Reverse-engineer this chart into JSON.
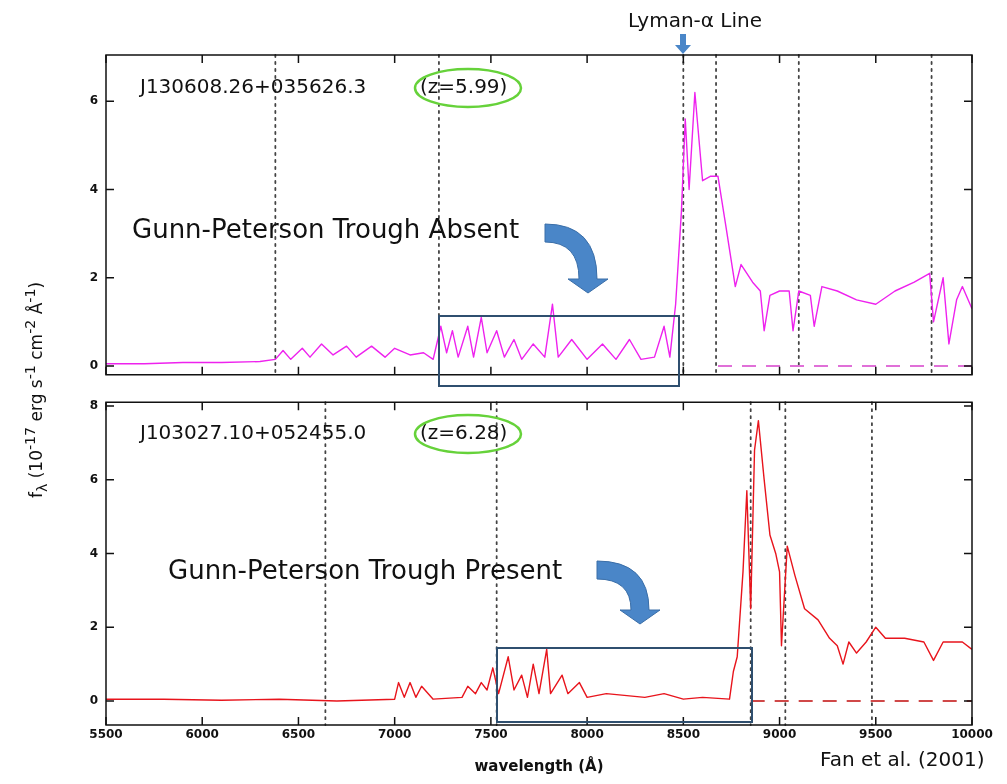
{
  "chart_data": [
    {
      "type": "line",
      "ylabel": "f$_{λ}$ (10$^{-17}$ erg s$^{-1}$ cm$^{-2}$ Å$^{-1}$)",
      "xlim": [
        5500,
        10000
      ],
      "xticks": [
        5500,
        6000,
        6500,
        7000,
        7500,
        8000,
        8500,
        9000,
        9500,
        10000
      ],
      "ylim": [
        -0.2,
        7.05
      ],
      "yticks": [
        0,
        2,
        4,
        6
      ],
      "tick_labels": "y",
      "grid": false,
      "legend": false,
      "marker": "none",
      "annotations": [
        "J130608.26+035626.3",
        "(z=5.99)",
        "Gunn-Peterson Trough Absent",
        "Lyman-α Line"
      ],
      "ref_lines": [
        {
          "axis": "x",
          "value": 6380,
          "color": "#444444",
          "line_style": "dotted"
        },
        {
          "axis": "x",
          "value": 7230,
          "color": "#444444",
          "line_style": "dotted"
        },
        {
          "axis": "x",
          "value": 8500,
          "color": "#444444",
          "line_style": "dotted"
        },
        {
          "axis": "x",
          "value": 8670,
          "color": "#444444",
          "line_style": "dotted"
        },
        {
          "axis": "x",
          "value": 9100,
          "color": "#444444",
          "line_style": "dotted"
        },
        {
          "axis": "x",
          "value": 9790,
          "color": "#444444",
          "line_style": "dotted"
        }
      ],
      "series": [
        {
          "color": "#ee22ee",
          "line_style": "solid",
          "x": [
            5500,
            5700,
            5900,
            6100,
            6300,
            6380,
            6420,
            6460,
            6520,
            6560,
            6620,
            6680,
            6750,
            6800,
            6880,
            6950,
            7000,
            7080,
            7150,
            7200,
            7240,
            7270,
            7300,
            7330,
            7380,
            7410,
            7450,
            7480,
            7530,
            7570,
            7620,
            7660,
            7720,
            7780,
            7820,
            7850,
            7920,
            8000,
            8080,
            8150,
            8220,
            8280,
            8350,
            8400,
            8430,
            8460,
            8490,
            8510,
            8530,
            8560,
            8600,
            8640,
            8680,
            8720,
            8770,
            8800,
            8860,
            8900,
            8920,
            8950,
            9000,
            9050,
            9070,
            9100,
            9160,
            9180,
            9220,
            9300,
            9400,
            9500,
            9600,
            9700,
            9780,
            9800,
            9850,
            9880,
            9920,
            9950,
            10000
          ],
          "values": [
            0.05,
            0.05,
            0.08,
            0.08,
            0.1,
            0.15,
            0.35,
            0.15,
            0.4,
            0.2,
            0.5,
            0.25,
            0.45,
            0.2,
            0.45,
            0.2,
            0.4,
            0.25,
            0.3,
            0.15,
            0.9,
            0.3,
            0.8,
            0.2,
            0.9,
            0.2,
            1.1,
            0.3,
            0.8,
            0.2,
            0.6,
            0.15,
            0.5,
            0.2,
            1.4,
            0.2,
            0.6,
            0.15,
            0.5,
            0.15,
            0.6,
            0.15,
            0.2,
            0.9,
            0.2,
            1.4,
            3.5,
            5.6,
            4.0,
            6.2,
            4.2,
            4.3,
            4.3,
            3.2,
            1.8,
            2.3,
            1.9,
            1.7,
            0.8,
            1.6,
            1.7,
            1.7,
            0.8,
            1.7,
            1.6,
            0.9,
            1.8,
            1.7,
            1.5,
            1.4,
            1.7,
            1.9,
            2.1,
            1.0,
            2.0,
            0.5,
            1.5,
            1.8,
            1.3
          ]
        },
        {
          "color": "#e070d8",
          "line_style": "dashed",
          "x": [
            8680,
            10000
          ],
          "values": [
            0,
            0
          ]
        }
      ]
    },
    {
      "type": "line",
      "xlabel": "wavelength (Å)",
      "xlim": [
        5500,
        10000
      ],
      "xticks": [
        5500,
        6000,
        6500,
        7000,
        7500,
        8000,
        8500,
        9000,
        9500,
        10000
      ],
      "ylim": [
        -0.65,
        8.1
      ],
      "yticks": [
        0,
        2,
        4,
        6,
        8
      ],
      "grid": false,
      "legend": false,
      "marker": "none",
      "annotations": [
        "J103027.10+052455.0",
        "(z=6.28)",
        "Gunn-Peterson Trough Present",
        "Fan et al. (2001)"
      ],
      "ref_lines": [
        {
          "axis": "x",
          "value": 6640,
          "color": "#444444",
          "line_style": "dotted"
        },
        {
          "axis": "x",
          "value": 7530,
          "color": "#444444",
          "line_style": "dotted"
        },
        {
          "axis": "x",
          "value": 8850,
          "color": "#444444",
          "line_style": "dotted"
        },
        {
          "axis": "x",
          "value": 9030,
          "color": "#444444",
          "line_style": "dotted"
        },
        {
          "axis": "x",
          "value": 9480,
          "color": "#444444",
          "line_style": "dotted"
        }
      ],
      "series": [
        {
          "color": "#e8141c",
          "line_style": "solid",
          "x": [
            5500,
            5800,
            6100,
            6400,
            6700,
            7000,
            7020,
            7050,
            7080,
            7110,
            7140,
            7200,
            7350,
            7380,
            7420,
            7450,
            7480,
            7510,
            7540,
            7590,
            7620,
            7660,
            7690,
            7720,
            7750,
            7790,
            7810,
            7870,
            7900,
            7960,
            8000,
            8100,
            8300,
            8400,
            8500,
            8600,
            8740,
            8760,
            8780,
            8810,
            8830,
            8850,
            8870,
            8890,
            8920,
            8950,
            8980,
            9000,
            9010,
            9040,
            9080,
            9130,
            9200,
            9260,
            9300,
            9330,
            9360,
            9400,
            9450,
            9500,
            9550,
            9650,
            9750,
            9800,
            9850,
            9950,
            10000
          ],
          "values": [
            0.05,
            0.05,
            0.02,
            0.05,
            0.0,
            0.05,
            0.5,
            0.1,
            0.5,
            0.1,
            0.4,
            0.05,
            0.1,
            0.4,
            0.2,
            0.5,
            0.3,
            0.9,
            0.2,
            1.2,
            0.3,
            0.7,
            0.1,
            1.0,
            0.2,
            1.4,
            0.2,
            0.7,
            0.2,
            0.5,
            0.1,
            0.2,
            0.1,
            0.2,
            0.05,
            0.1,
            0.05,
            0.8,
            1.2,
            3.5,
            5.7,
            2.5,
            6.8,
            7.6,
            6.0,
            4.5,
            4.0,
            3.5,
            1.5,
            4.2,
            3.4,
            2.5,
            2.2,
            1.7,
            1.5,
            1.0,
            1.6,
            1.3,
            1.6,
            2.0,
            1.7,
            1.7,
            1.6,
            1.1,
            1.6,
            1.6,
            1.4
          ]
        },
        {
          "color": "#d04848",
          "line_style": "dashed",
          "x": [
            8850,
            10000
          ],
          "values": [
            0,
            0
          ]
        }
      ]
    }
  ]
}
